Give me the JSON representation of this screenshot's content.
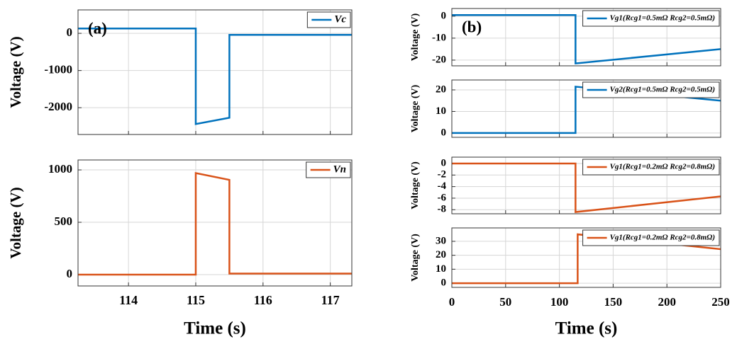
{
  "chart_data": [
    {
      "type": "line",
      "annotation": "(a)",
      "ylabel": "Voltage (V)",
      "grid": true,
      "legend": "upper right",
      "xtick_labels": false,
      "x": [
        113.25,
        115,
        115,
        115.5,
        115.5,
        117.32
      ],
      "series": [
        {
          "name": "Vc",
          "color": "#0072bd",
          "values": [
            130,
            130,
            -2440,
            -2270,
            -40,
            -40
          ]
        }
      ],
      "xlim": [
        113.25,
        117.32
      ],
      "xticks": [
        114,
        115,
        116,
        117
      ],
      "ylim": [
        -2720,
        630
      ],
      "yticks": [
        -2000,
        -1000,
        0
      ]
    },
    {
      "type": "line",
      "ylabel": "Voltage (V)",
      "xlabel": "Time (s)",
      "grid": true,
      "legend": "upper right",
      "xtick_labels": true,
      "x": [
        113.25,
        115,
        115,
        115.5,
        115.5,
        117.32
      ],
      "series": [
        {
          "name": "Vn",
          "color": "#d95319",
          "values": [
            0,
            0,
            970,
            905,
            10,
            10
          ]
        }
      ],
      "xlim": [
        113.25,
        117.32
      ],
      "xticks": [
        114,
        115,
        116,
        117
      ],
      "ylim": [
        -108,
        1095
      ],
      "yticks": [
        0,
        500,
        1000
      ]
    },
    {
      "type": "line",
      "annotation": "(b)",
      "ylabel": "Voltage (V)",
      "grid": true,
      "legend": "upper right",
      "xtick_labels": false,
      "x": [
        0,
        115,
        115,
        250
      ],
      "series": [
        {
          "name": "Vg1(Rcg1=0.5mΩ Rcg2=0.5mΩ)",
          "color": "#0072bd",
          "values": [
            0.5,
            0.5,
            -21.5,
            -15
          ]
        }
      ],
      "xlim": [
        0,
        250
      ],
      "xticks": [
        0,
        50,
        100,
        150,
        200,
        250
      ],
      "ylim": [
        -22.6,
        3.5
      ],
      "yticks": [
        -20,
        -10,
        0
      ]
    },
    {
      "type": "line",
      "ylabel": "Voltage (V)",
      "grid": true,
      "legend": "upper right",
      "xtick_labels": false,
      "x": [
        0,
        115,
        115,
        250
      ],
      "series": [
        {
          "name": "Vg2(Rcg1=0.5mΩ Rcg2=0.5mΩ)",
          "color": "#0072bd",
          "values": [
            0,
            0,
            21.5,
            15
          ]
        }
      ],
      "xlim": [
        0,
        250
      ],
      "xticks": [
        0,
        50,
        100,
        150,
        200,
        250
      ],
      "ylim": [
        -2,
        24.6
      ],
      "yticks": [
        0,
        10,
        20
      ]
    },
    {
      "type": "line",
      "ylabel": "Voltage (V)",
      "grid": true,
      "legend": "upper right",
      "xtick_labels": false,
      "x": [
        0,
        115,
        115,
        250
      ],
      "series": [
        {
          "name": "Vg1(Rcg1=0.2mΩ Rcg2=0.8mΩ)",
          "color": "#d95319",
          "values": [
            0,
            0,
            -8.4,
            -5.7
          ]
        }
      ],
      "xlim": [
        0,
        250
      ],
      "xticks": [
        0,
        50,
        100,
        150,
        200,
        250
      ],
      "ylim": [
        -8.7,
        1.1
      ],
      "yticks": [
        -8,
        -6,
        -4,
        -2,
        0
      ]
    },
    {
      "type": "line",
      "ylabel": "Voltage (V)",
      "xlabel": "Time (s)",
      "grid": true,
      "legend": "upper right",
      "xtick_labels": true,
      "x": [
        0,
        117,
        117,
        250
      ],
      "series": [
        {
          "name": "Vg1(Rcg1=0.2mΩ Rcg2=0.8mΩ)",
          "color": "#d95319",
          "values": [
            0,
            0,
            35,
            24.4
          ]
        }
      ],
      "xlim": [
        0,
        250
      ],
      "xticks": [
        0,
        50,
        100,
        150,
        200,
        250
      ],
      "ylim": [
        -3,
        39.6
      ],
      "yticks": [
        0,
        10,
        20,
        30
      ]
    }
  ]
}
